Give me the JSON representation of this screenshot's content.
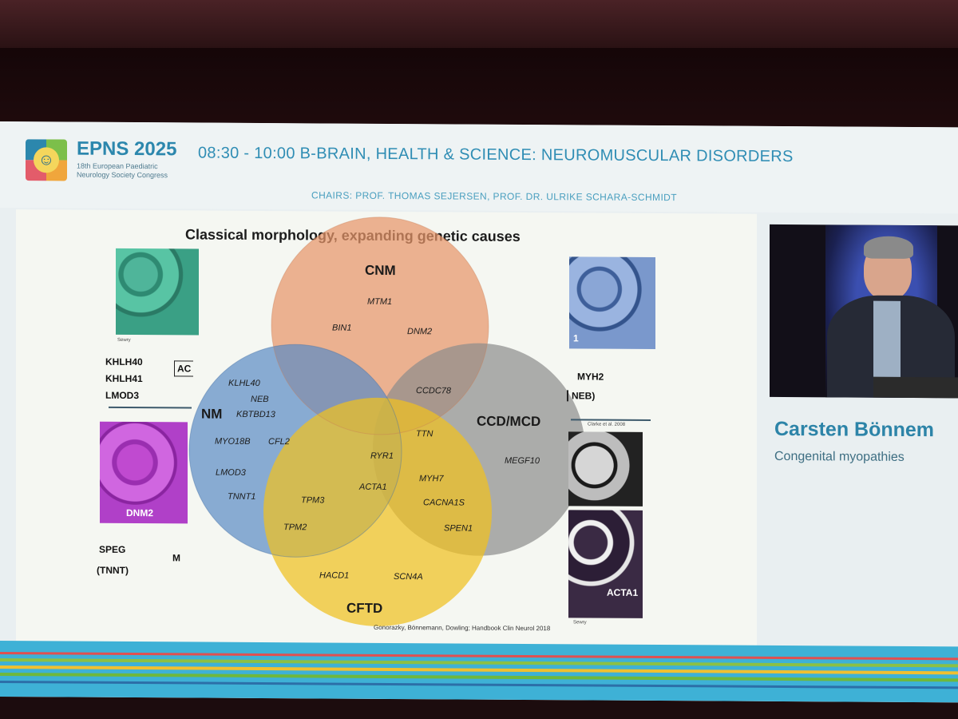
{
  "header": {
    "brand": "EPNS 2025",
    "brand_sub_1": "18th European Paediatric",
    "brand_sub_2": "Neurology Society Congress",
    "session": "08:30 - 10:00  B-BRAIN, HEALTH & SCIENCE: NEUROMUSCULAR DISORDERS",
    "chairs": "CHAIRS: PROF. THOMAS SEJERSEN, PROF. DR. ULRIKE SCHARA-SCHMIDT"
  },
  "slide": {
    "title": "Classical morphology, expanding genetic causes",
    "circles": {
      "cnm": "CNM",
      "nm": "NM",
      "ccd": "CCD/MCD",
      "cftd": "CFTD"
    },
    "genes": {
      "mtm1": "MTM1",
      "bin1": "BIN1",
      "dnm2": "DNM2",
      "klhl40": "KLHL40",
      "neb": "NEB",
      "kbtbd13": "KBTBD13",
      "myo18b": "MYO18B",
      "cfl2": "CFL2",
      "lmod3": "LMOD3",
      "tnnt1": "TNNT1",
      "ccdc78": "CCDC78",
      "ttn": "TTN",
      "megf10": "MEGF10",
      "ryr1": "RYR1",
      "acta1": "ACTA1",
      "tpm3": "TPM3",
      "tpm2": "TPM2",
      "myh7": "MYH7",
      "cacna1s": "CACNA1S",
      "spen1": "SPEN1",
      "hacd1": "HACD1",
      "scn4a": "SCN4A"
    },
    "left_list": [
      "KHLH40",
      "KHLH41",
      "LMOD3"
    ],
    "left_box": "AC",
    "left_bottom_1": "SPEG",
    "left_bottom_2": "(TNNT)",
    "left_bottom_m": "M",
    "left_image_label": "DNM2",
    "right_list_1": "MYH2",
    "right_list_2": "NEB)",
    "right_image_num": "1",
    "right_image_label": "ACTA1",
    "right_caption": "Clarke et al. 2008",
    "small_caption_1": "Sewry",
    "small_caption_2": "Sewry",
    "reference": "Gonorazky, Bönnemann, Dowling; Handbook Clin Neurol 2018"
  },
  "speaker": {
    "name": "Carsten Bönnem",
    "topic": "Congenital myopathies"
  },
  "colors": {
    "brand_blue": "#2c87ad",
    "cnm": "#e8956a",
    "nm": "#5a8ac4",
    "ccd": "#8f8f8f",
    "cftd": "#f0c020"
  }
}
